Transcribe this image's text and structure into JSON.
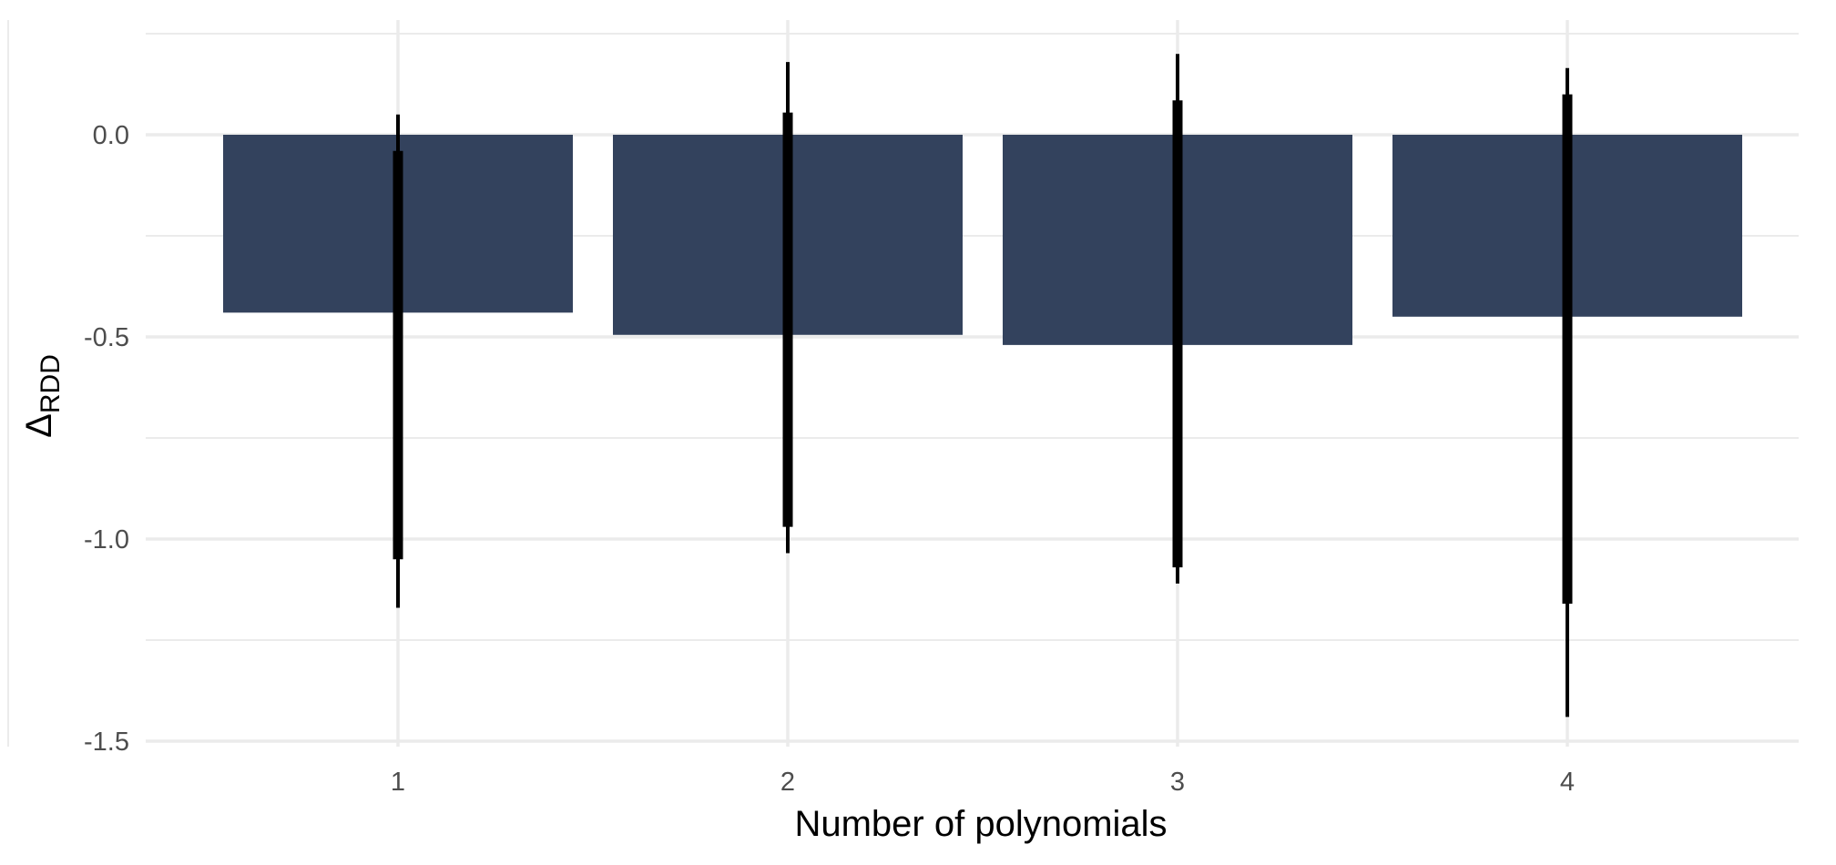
{
  "chart_data": {
    "type": "bar",
    "categories": [
      "1",
      "2",
      "3",
      "4"
    ],
    "values": [
      -0.44,
      -0.495,
      -0.52,
      -0.45
    ],
    "error_bars": {
      "inner": [
        [
          -1.05,
          -0.04
        ],
        [
          -0.97,
          0.055
        ],
        [
          -1.07,
          0.085
        ],
        [
          -1.16,
          0.1
        ]
      ],
      "outer": [
        [
          -1.17,
          0.05
        ],
        [
          -1.035,
          0.18
        ],
        [
          -1.11,
          0.2
        ],
        [
          -1.44,
          0.165
        ]
      ]
    },
    "xlabel": "Number of polynomials",
    "ylabel_main": "Δ",
    "ylabel_sub": "RDD",
    "yticks": [
      "0.0",
      "-0.5",
      "-1.0",
      "-1.5"
    ],
    "ytick_values": [
      0.0,
      -0.5,
      -1.0,
      -1.5
    ],
    "ylim": [
      -1.52,
      0.28
    ],
    "grid": true,
    "bar_color": "#33425d",
    "errorbar_color": "#000000",
    "grid_color": "#ebebeb"
  }
}
